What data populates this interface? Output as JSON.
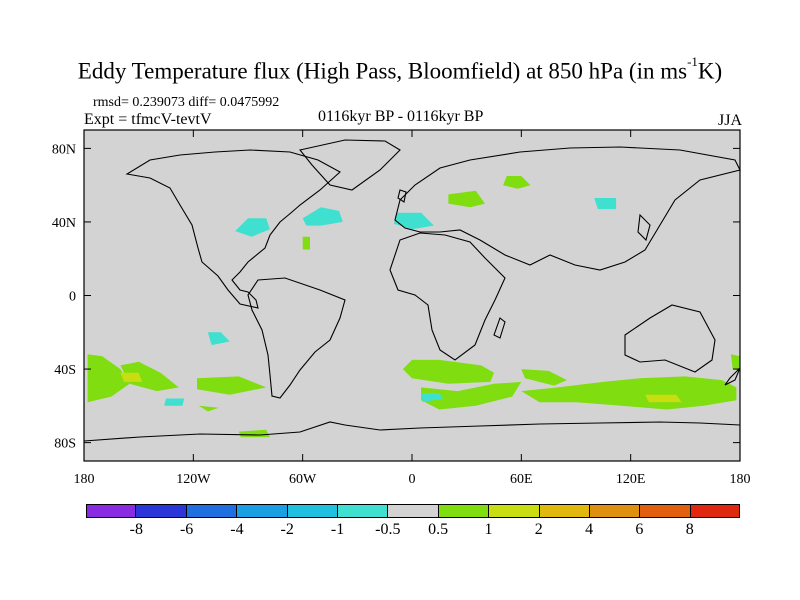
{
  "title_main": "Eddy Temperature flux (High Pass, Bloomfield) at 850 hPa (in ms",
  "title_sup": "-1",
  "title_end": "K)",
  "stats_line": "rmsd= 0.239073 diff= 0.0475992",
  "expt_line": "Expt = tfmcV-tevtV",
  "center_label": "0116kyr BP - 0116kyr BP",
  "season": "JJA",
  "map": {
    "lon_range": [
      -180,
      180
    ],
    "lat_range": [
      -90,
      90
    ],
    "background_color": "#d3d3d3",
    "lat_ticks": [
      {
        "value": 80,
        "label": "80N"
      },
      {
        "value": 40,
        "label": "40N"
      },
      {
        "value": 0,
        "label": "0"
      },
      {
        "value": -40,
        "label": "40S"
      },
      {
        "value": -80,
        "label": "80S"
      }
    ],
    "lon_ticks": [
      {
        "value": -180,
        "label": "180"
      },
      {
        "value": -120,
        "label": "120W"
      },
      {
        "value": -60,
        "label": "60W"
      },
      {
        "value": 0,
        "label": "0"
      },
      {
        "value": 60,
        "label": "60E"
      },
      {
        "value": 120,
        "label": "120E"
      },
      {
        "value": 180,
        "label": "180"
      }
    ]
  },
  "colorbar": {
    "colors": [
      "#8a2be2",
      "#2a36d8",
      "#1f6fe0",
      "#1aa0e0",
      "#20c0e0",
      "#40e0d0",
      "#d3d3d3",
      "#7fdd10",
      "#c8de10",
      "#e0b810",
      "#e09010",
      "#e06010",
      "#e02810"
    ],
    "labels": [
      "-8",
      "-6",
      "-4",
      "-2",
      "-1",
      "-0.5",
      "0.5",
      "1",
      "2",
      "4",
      "6",
      "8"
    ]
  },
  "regions": [
    {
      "name": "north-atlantic-neg-1",
      "color": "#40e0d0",
      "pts": [
        [
          -97,
          35
        ],
        [
          -90,
          42
        ],
        [
          -80,
          42
        ],
        [
          -78,
          36
        ],
        [
          -88,
          32
        ]
      ]
    },
    {
      "name": "north-atlantic-neg-2",
      "color": "#40e0d0",
      "pts": [
        [
          -60,
          42
        ],
        [
          -50,
          48
        ],
        [
          -40,
          46
        ],
        [
          -38,
          40
        ],
        [
          -50,
          38
        ],
        [
          -58,
          38
        ]
      ]
    },
    {
      "name": "north-atlantic-pos-1",
      "color": "#7fdd10",
      "pts": [
        [
          -60,
          32
        ],
        [
          -56,
          32
        ],
        [
          -56,
          25
        ],
        [
          -60,
          25
        ]
      ]
    },
    {
      "name": "north-pacific-neg",
      "color": "#40e0d0",
      "pts": [
        [
          -112,
          -20
        ],
        [
          -105,
          -20
        ],
        [
          -100,
          -25
        ],
        [
          -110,
          -27
        ]
      ]
    },
    {
      "name": "south-pacific-pos-1",
      "color": "#7fdd10",
      "pts": [
        [
          -178,
          -32
        ],
        [
          -170,
          -33
        ],
        [
          -160,
          -40
        ],
        [
          -155,
          -48
        ],
        [
          -165,
          -55
        ],
        [
          -178,
          -58
        ]
      ]
    },
    {
      "name": "south-pacific-pos-2",
      "color": "#7fdd10",
      "pts": [
        [
          -160,
          -38
        ],
        [
          -150,
          -36
        ],
        [
          -138,
          -42
        ],
        [
          -128,
          -50
        ],
        [
          -140,
          -52
        ],
        [
          -155,
          -48
        ]
      ]
    },
    {
      "name": "south-pacific-pos-3",
      "color": "#7fdd10",
      "pts": [
        [
          -118,
          -45
        ],
        [
          -95,
          -44
        ],
        [
          -80,
          -50
        ],
        [
          -100,
          -54
        ],
        [
          -118,
          -51
        ]
      ]
    },
    {
      "name": "south-pacific-neg-1",
      "color": "#40e0d0",
      "pts": [
        [
          -135,
          -56
        ],
        [
          -125,
          -56
        ],
        [
          -126,
          -60
        ],
        [
          -136,
          -60
        ]
      ]
    },
    {
      "name": "south-pacific-pos-4",
      "color": "#7fdd10",
      "pts": [
        [
          -117,
          -60
        ],
        [
          -106,
          -61
        ],
        [
          -112,
          -63
        ]
      ]
    },
    {
      "name": "south-atlantic-pos-1",
      "color": "#7fdd10",
      "pts": [
        [
          0,
          -35
        ],
        [
          15,
          -35
        ],
        [
          38,
          -38
        ],
        [
          45,
          -42
        ],
        [
          43,
          -47
        ],
        [
          20,
          -48
        ],
        [
          0,
          -45
        ],
        [
          -5,
          -40
        ]
      ]
    },
    {
      "name": "south-atlantic-pos-2",
      "color": "#7fdd10",
      "pts": [
        [
          5,
          -50
        ],
        [
          25,
          -52
        ],
        [
          45,
          -48
        ],
        [
          60,
          -47
        ],
        [
          55,
          -55
        ],
        [
          35,
          -60
        ],
        [
          15,
          -62
        ],
        [
          5,
          -57
        ]
      ]
    },
    {
      "name": "south-atlantic-neg",
      "color": "#40e0d0",
      "pts": [
        [
          5,
          -53
        ],
        [
          15,
          -53
        ],
        [
          17,
          -56
        ],
        [
          6,
          -58
        ]
      ]
    },
    {
      "name": "southern-ocean-pos-1",
      "color": "#7fdd10",
      "pts": [
        [
          60,
          -40
        ],
        [
          75,
          -41
        ],
        [
          85,
          -46
        ],
        [
          78,
          -49
        ],
        [
          62,
          -45
        ]
      ]
    },
    {
      "name": "southern-ocean-pos-2",
      "color": "#7fdd10",
      "pts": [
        [
          60,
          -52
        ],
        [
          80,
          -50
        ],
        [
          105,
          -47
        ],
        [
          125,
          -45
        ],
        [
          150,
          -44
        ],
        [
          170,
          -46
        ],
        [
          178,
          -50
        ],
        [
          178,
          -57
        ],
        [
          160,
          -60
        ],
        [
          140,
          -62
        ],
        [
          115,
          -60
        ],
        [
          90,
          -58
        ],
        [
          70,
          -58
        ]
      ]
    },
    {
      "name": "southern-ocean-pos-3",
      "color": "#7fdd10",
      "pts": [
        [
          175,
          -32
        ],
        [
          180,
          -33
        ],
        [
          180,
          -40
        ],
        [
          176,
          -40
        ]
      ]
    },
    {
      "name": "southern-ocean-pos-4",
      "color": "#c8de10",
      "pts": [
        [
          -160,
          -42
        ],
        [
          -150,
          -42
        ],
        [
          -148,
          -47
        ],
        [
          -158,
          -47
        ]
      ]
    },
    {
      "name": "southern-ocean-pos-5",
      "color": "#c8de10",
      "pts": [
        [
          128,
          -54
        ],
        [
          145,
          -54
        ],
        [
          148,
          -58
        ],
        [
          130,
          -58
        ]
      ]
    },
    {
      "name": "antarctic-coast-pos",
      "color": "#7fdd10",
      "pts": [
        [
          -95,
          -74
        ],
        [
          -80,
          -73
        ],
        [
          -78,
          -77
        ],
        [
          -94,
          -77
        ]
      ]
    },
    {
      "name": "eurasia-pos-1",
      "color": "#7fdd10",
      "pts": [
        [
          20,
          55
        ],
        [
          35,
          57
        ],
        [
          40,
          50
        ],
        [
          32,
          48
        ],
        [
          20,
          50
        ]
      ]
    },
    {
      "name": "eurasia-pos-2",
      "color": "#7fdd10",
      "pts": [
        [
          52,
          65
        ],
        [
          60,
          65
        ],
        [
          65,
          60
        ],
        [
          58,
          58
        ],
        [
          50,
          60
        ]
      ]
    },
    {
      "name": "eurasia-neg",
      "color": "#40e0d0",
      "pts": [
        [
          100,
          53
        ],
        [
          112,
          53
        ],
        [
          112,
          47
        ],
        [
          102,
          47
        ]
      ]
    },
    {
      "name": "mediterranean-neg",
      "color": "#40e0d0",
      "pts": [
        [
          -8,
          45
        ],
        [
          5,
          45
        ],
        [
          12,
          38
        ],
        [
          0,
          36
        ],
        [
          -10,
          39
        ]
      ]
    }
  ]
}
